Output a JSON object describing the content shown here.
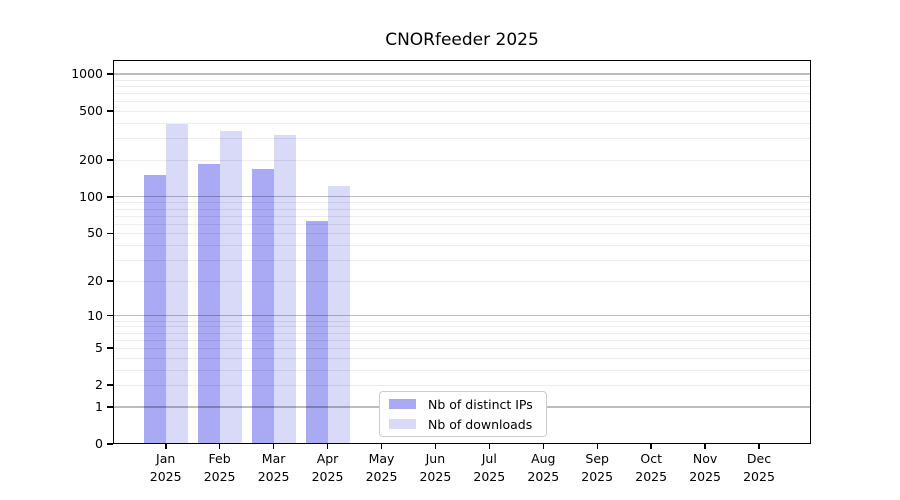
{
  "page": {
    "background": "#ffffff"
  },
  "chart_data": {
    "type": "bar",
    "title": "CNORfeeder 2025",
    "xlabel": "",
    "ylabel": "",
    "categories": [
      "Jan",
      "Feb",
      "Mar",
      "Apr",
      "May",
      "Jun",
      "Jul",
      "Aug",
      "Sep",
      "Oct",
      "Nov",
      "Dec"
    ],
    "category_year": "2025",
    "series": [
      {
        "name": "Nb of distinct IPs",
        "color": "#a9a9f4",
        "values": [
          151,
          187,
          168,
          63,
          null,
          null,
          null,
          null,
          null,
          null,
          null,
          null
        ]
      },
      {
        "name": "Nb of downloads",
        "color": "#d9d9f8",
        "values": [
          391,
          344,
          322,
          122,
          null,
          null,
          null,
          null,
          null,
          null,
          null,
          null
        ]
      }
    ],
    "yscale": "symlog-log1p",
    "yticks": [
      0,
      1,
      2,
      5,
      10,
      20,
      50,
      100,
      200,
      500,
      1000
    ],
    "ylim": [
      0,
      1300
    ],
    "grid": "horizontal, minor log lines + major decade lines, drawn over bars",
    "legend_position": "inside bottom-center",
    "colors": {
      "axis": "#000000",
      "grid_major": "#c2c2c2",
      "grid_minor": "#ececec",
      "legend_border": "#cccccc"
    }
  }
}
